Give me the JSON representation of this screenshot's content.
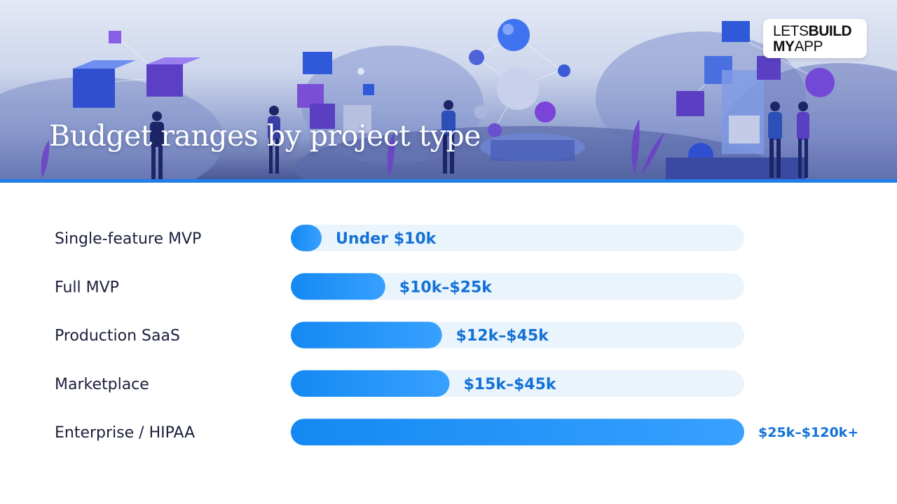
{
  "hero": {
    "title": "Budget ranges by project type"
  },
  "logo": {
    "line1_light": "LETS",
    "line1_bold": "BUILD",
    "line2_bold": "MY",
    "line2_light": "APP"
  },
  "colors": {
    "accent": "#1f7ee8",
    "bar_start": "#1489f2",
    "bar_end": "#38a0ff",
    "track": "#eaf4fd",
    "label_text": "#1b1f3b",
    "value_text": "#1371d6"
  },
  "chart_data": {
    "type": "bar",
    "orientation": "horizontal",
    "title": "Budget ranges by project type",
    "xlabel": "",
    "ylabel": "",
    "xlim": [
      0,
      120
    ],
    "unit": "$k",
    "grid": false,
    "legend": "none",
    "categories": [
      "Single-feature MVP",
      "Full MVP",
      "Production SaaS",
      "Marketplace",
      "Enterprise / HIPAA"
    ],
    "values": [
      5,
      25,
      40,
      42,
      120
    ],
    "value_labels": [
      "Under $10k",
      "$10k–$25k",
      "$12k–$45k",
      "$15k–$45k",
      "$25k–$120k+"
    ]
  }
}
